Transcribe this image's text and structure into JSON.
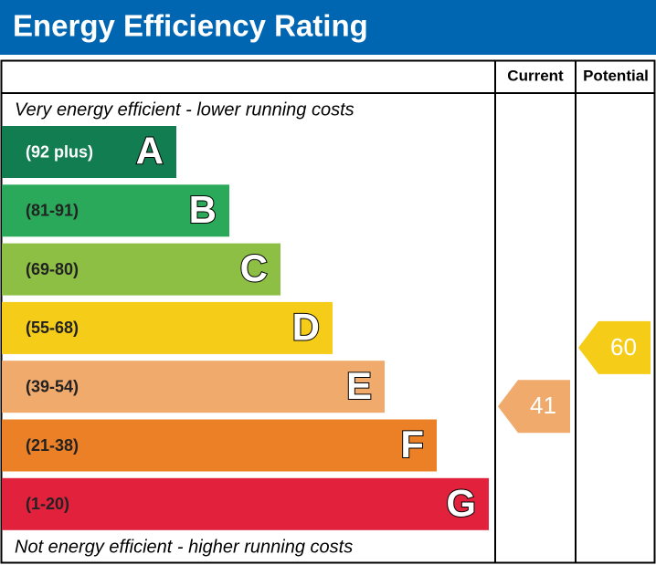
{
  "title": "Energy Efficiency Rating",
  "columns": [
    "Current",
    "Potential"
  ],
  "top_label": "Very energy efficient - lower running costs",
  "bottom_label": "Not energy efficient - higher running costs",
  "bands": [
    {
      "range": "(92 plus)",
      "letter": "A",
      "color": "#137d52"
    },
    {
      "range": "(81-91)",
      "letter": "B",
      "color": "#2ba95a"
    },
    {
      "range": "(69-80)",
      "letter": "C",
      "color": "#8dbf45"
    },
    {
      "range": "(55-68)",
      "letter": "D",
      "color": "#f5cc18"
    },
    {
      "range": "(39-54)",
      "letter": "E",
      "color": "#f0aa6c"
    },
    {
      "range": "(21-38)",
      "letter": "F",
      "color": "#ec8026"
    },
    {
      "range": "(1-20)",
      "letter": "G",
      "color": "#e2213d"
    }
  ],
  "current": {
    "value": 41,
    "color": "#f0aa6c"
  },
  "potential": {
    "value": 60,
    "color": "#f5cc18"
  }
}
